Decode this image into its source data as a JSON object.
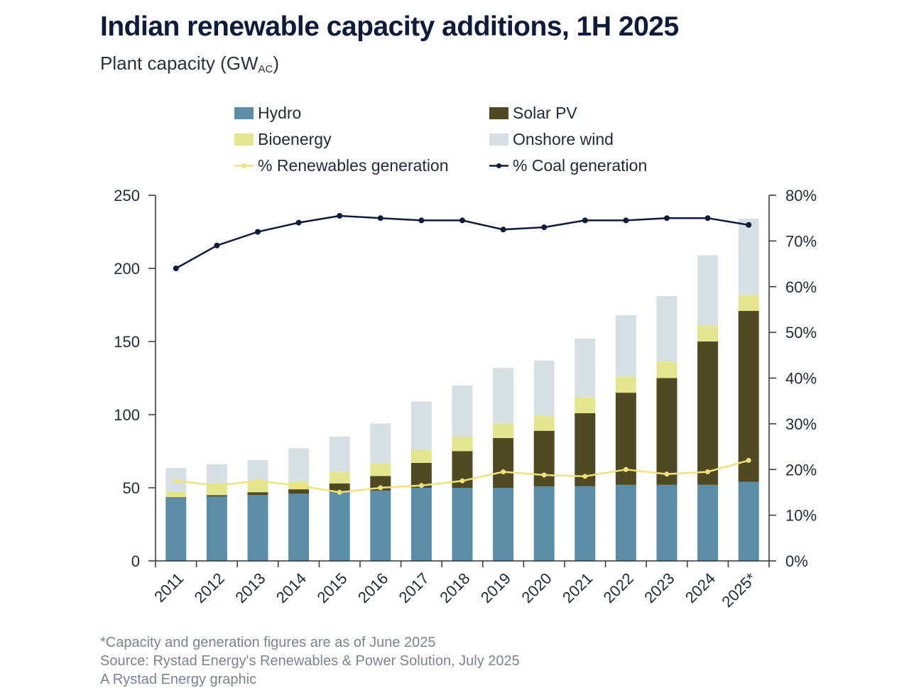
{
  "title": "Indian renewable capacity additions, 1H 2025",
  "subtitle": {
    "text": "Plant capacity (GW",
    "sub": "AC",
    "close": ")"
  },
  "colors": {
    "hydro": "#5b8ea6",
    "solar": "#4f4a23",
    "bioenergy": "#e3e68f",
    "wind": "#d6dfe3",
    "renewables_line": "#f0e27a",
    "coal_line": "#0f1b3a",
    "axis": "#333333"
  },
  "legend": {
    "hydro": "Hydro",
    "solar": "Solar PV",
    "bioenergy": "Bioenergy",
    "wind": "Onshore wind",
    "renewables": "% Renewables generation",
    "coal": "% Coal generation"
  },
  "footnotes": {
    "note": "*Capacity and generation figures are as of June 2025",
    "source": "Source: Rystad Energy's Renewables & Power Solution, July 2025",
    "credit": "A Rystad Energy graphic"
  },
  "chart_data": {
    "type": "bar",
    "stacked": true,
    "title": "Indian renewable capacity additions, 1H 2025",
    "ylabel": "Plant capacity (GWAC)",
    "ylim": [
      0,
      250
    ],
    "yticks": [
      0,
      50,
      100,
      150,
      200,
      250
    ],
    "y2lim": [
      0,
      80
    ],
    "y2ticks": [
      "0%",
      "10%",
      "20%",
      "30%",
      "40%",
      "50%",
      "60%",
      "70%",
      "80%"
    ],
    "categories": [
      "2011",
      "2012",
      "2013",
      "2014",
      "2015",
      "2016",
      "2017",
      "2018",
      "2019",
      "2020",
      "2021",
      "2022",
      "2023",
      "2024",
      "2025*"
    ],
    "series": [
      {
        "name": "Hydro",
        "key": "hydro",
        "values": [
          43,
          44,
          45,
          46,
          47,
          48,
          50,
          50,
          50,
          51,
          51,
          52,
          52,
          52,
          54
        ]
      },
      {
        "name": "Solar PV",
        "key": "solar",
        "values": [
          0.5,
          1,
          2,
          3,
          6,
          10,
          17,
          25,
          34,
          38,
          50,
          63,
          73,
          98,
          117
        ]
      },
      {
        "name": "Bioenergy",
        "key": "bioenergy",
        "values": [
          4,
          7,
          7,
          5,
          8,
          9,
          9,
          10,
          10,
          10,
          11,
          11,
          11,
          11,
          11
        ]
      },
      {
        "name": "Onshore wind",
        "key": "wind",
        "values": [
          16,
          14,
          15,
          23,
          24,
          27,
          33,
          35,
          38,
          38,
          40,
          42,
          45,
          48,
          52
        ]
      }
    ],
    "lines": [
      {
        "name": "% Renewables generation",
        "key": "renewables",
        "axis": "right",
        "values": [
          17.5,
          16.5,
          17.5,
          16.5,
          15,
          16,
          16.5,
          17.5,
          19.5,
          18.8,
          18.5,
          20,
          19,
          19.5,
          22
        ]
      },
      {
        "name": "% Coal generation",
        "key": "coal",
        "axis": "right",
        "values": [
          64,
          69,
          72,
          74,
          75.5,
          75,
          74.5,
          74.5,
          72.5,
          73,
          74.5,
          74.5,
          75,
          75,
          73.5
        ]
      }
    ]
  }
}
